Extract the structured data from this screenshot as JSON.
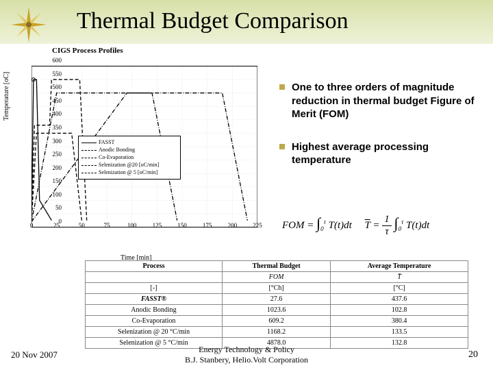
{
  "title": "Thermal Budget Comparison",
  "chart": {
    "title": "CIGS Process Profiles",
    "xlabel": "Time [min]",
    "ylabel": "Temperature [oC]",
    "ylim": [
      0,
      600
    ],
    "ytick_step": 50,
    "xlim": [
      0,
      225
    ],
    "xtick_step": 25,
    "bg": "#ffffff",
    "grid": "#cccccc",
    "series": [
      {
        "name": "FASST",
        "style": "solid",
        "color": "#000000",
        "data": [
          [
            0,
            20
          ],
          [
            2,
            550
          ],
          [
            5,
            550
          ],
          [
            8,
            100
          ],
          [
            20,
            25
          ]
        ]
      },
      {
        "name": "Anodic Bonding",
        "style": "dash",
        "color": "#000000",
        "data": [
          [
            0,
            20
          ],
          [
            5,
            350
          ],
          [
            40,
            350
          ],
          [
            50,
            25
          ]
        ]
      },
      {
        "name": "Co-Evaporation",
        "style": "dash",
        "color": "#000000",
        "data": [
          [
            0,
            20
          ],
          [
            3,
            380
          ],
          [
            18,
            380
          ],
          [
            20,
            550
          ],
          [
            48,
            550
          ],
          [
            55,
            25
          ]
        ]
      },
      {
        "name": "Selenization @20 [oC/min]",
        "style": "dashdot",
        "color": "#000000",
        "data": [
          [
            0,
            20
          ],
          [
            25,
            500
          ],
          [
            120,
            500
          ],
          [
            145,
            25
          ]
        ]
      },
      {
        "name": "Selenization @ 5 [oC/min]",
        "style": "dashdot",
        "color": "#000000",
        "data": [
          [
            0,
            20
          ],
          [
            95,
            500
          ],
          [
            190,
            500
          ],
          [
            215,
            25
          ]
        ]
      }
    ]
  },
  "bullets": [
    "One to three orders of magnitude reduction in thermal budget Figure of Merit (FOM)",
    "Highest average processing temperature"
  ],
  "formula": {
    "fom_label": "FOM",
    "tbar_label": "T",
    "text1": "T(t) dt",
    "text2": "T(t) dt"
  },
  "table": {
    "headers": [
      "Process",
      "Thermal Budget",
      "Average Temperature"
    ],
    "sub": [
      "",
      "FOM",
      "T̄"
    ],
    "units": [
      "[-]",
      "[°Ch]",
      "[°C]"
    ],
    "rows": [
      [
        "FASST®",
        "27.6",
        "437.6"
      ],
      [
        "Anodic Bonding",
        "1023.6",
        "102.8"
      ],
      [
        "Co-Evaporation",
        "609.2",
        "380.4"
      ],
      [
        "Selenization @ 20 °C/min",
        "1168.2",
        "133.5"
      ],
      [
        "Selenization @ 5 °C/min",
        "4878.0",
        "132.8"
      ]
    ]
  },
  "footer": {
    "date": "20 Nov 2007",
    "center1": "Energy Technology & Policy",
    "center2": "B.J. Stanbery, Helio.Volt Corporation",
    "page": "20"
  }
}
